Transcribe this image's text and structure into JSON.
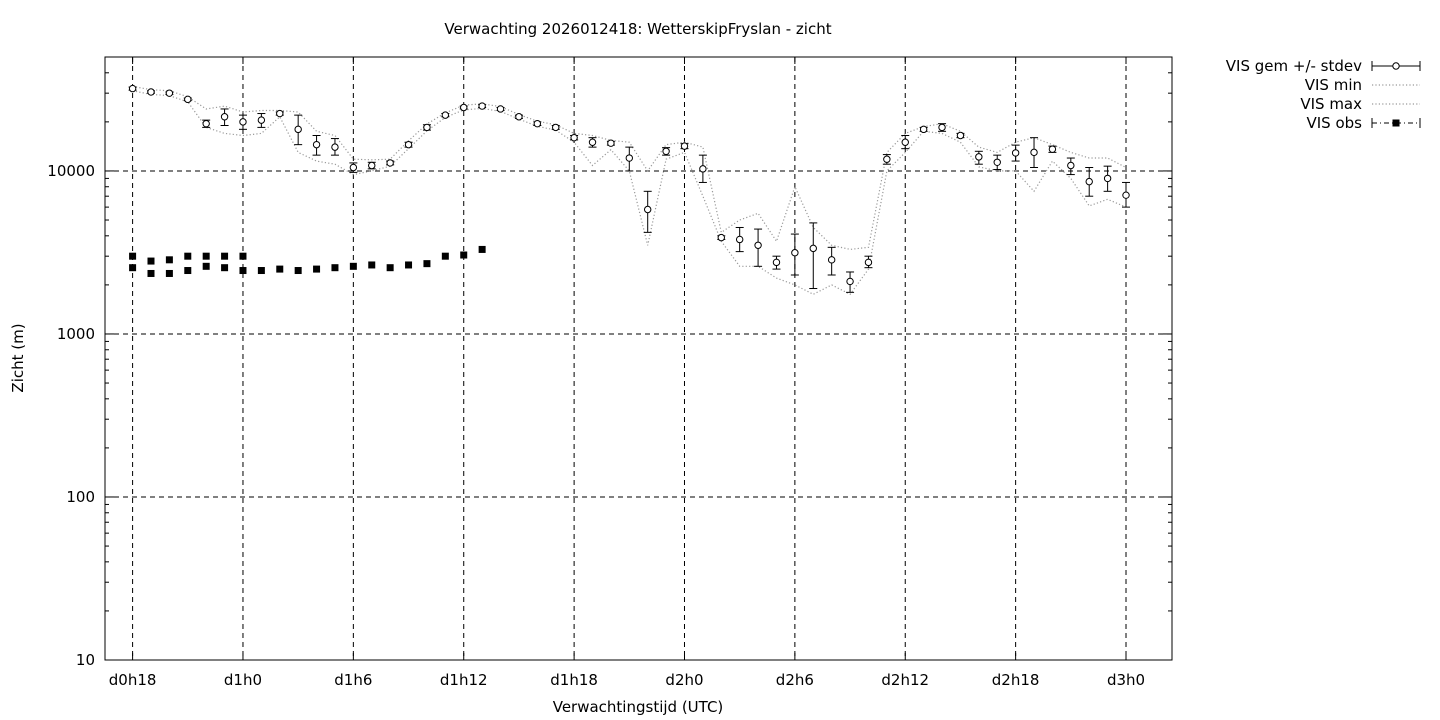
{
  "chart_data": {
    "type": "scatter",
    "title": "Verwachting 2026012418: WetterskipFryslan - zicht",
    "xlabel": "Verwachtingstijd (UTC)",
    "ylabel": "Zicht (m)",
    "x_unit": "hours since d0h18",
    "xlim": [
      -1.5,
      56.5
    ],
    "ylim": [
      10,
      50000
    ],
    "y_scale": "log",
    "grid": true,
    "legend_position": "outside top-right",
    "x_ticks": [
      {
        "x": 0,
        "label": "d0h18"
      },
      {
        "x": 6,
        "label": "d1h0"
      },
      {
        "x": 12,
        "label": "d1h6"
      },
      {
        "x": 18,
        "label": "d1h12"
      },
      {
        "x": 24,
        "label": "d1h18"
      },
      {
        "x": 30,
        "label": "d2h0"
      },
      {
        "x": 36,
        "label": "d2h6"
      },
      {
        "x": 42,
        "label": "d2h12"
      },
      {
        "x": 48,
        "label": "d2h18"
      },
      {
        "x": 54,
        "label": "d3h0"
      }
    ],
    "y_ticks": [
      {
        "y": 10,
        "label": "10"
      },
      {
        "y": 100,
        "label": "100"
      },
      {
        "y": 1000,
        "label": "1000"
      },
      {
        "y": 10000,
        "label": "10000"
      }
    ],
    "legend": [
      {
        "name": "VIS gem +/- stdev",
        "style": "errorbar-circle"
      },
      {
        "name": "VIS min",
        "style": "dotted"
      },
      {
        "name": "VIS max",
        "style": "dotted"
      },
      {
        "name": "VIS obs",
        "style": "square-dashdot"
      }
    ],
    "series": [
      {
        "name": "VIS gem +/- stdev",
        "x": [
          0,
          1,
          2,
          3,
          4,
          5,
          6,
          7,
          8,
          9,
          10,
          11,
          12,
          13,
          14,
          15,
          16,
          17,
          18,
          19,
          20,
          21,
          22,
          23,
          24,
          25,
          26,
          27,
          28,
          29,
          30,
          31,
          32,
          33,
          34,
          35,
          36,
          37,
          38,
          39,
          40,
          41,
          42,
          43,
          44,
          45,
          46,
          47,
          48,
          49,
          50,
          51,
          52,
          53,
          54
        ],
        "y": [
          32000,
          30500,
          30000,
          27500,
          19500,
          21500,
          20000,
          20500,
          22500,
          18000,
          14500,
          14000,
          10500,
          10800,
          11200,
          14500,
          18500,
          22000,
          24500,
          25000,
          24000,
          21500,
          19500,
          18500,
          16000,
          15000,
          14800,
          12000,
          5800,
          13200,
          14200,
          10300,
          3900,
          3800,
          3500,
          2750,
          3150,
          3350,
          2850,
          2100,
          2750,
          11800,
          15000,
          18000,
          18500,
          16500,
          12200,
          11300,
          12900,
          13000,
          13600,
          10800,
          8600,
          9000,
          7100
        ],
        "stdev_lo": [
          31300,
          30000,
          29500,
          27000,
          18500,
          19000,
          18000,
          18500,
          22000,
          14500,
          12500,
          12500,
          9800,
          10300,
          10900,
          14000,
          17800,
          21500,
          24000,
          24500,
          23500,
          21000,
          19000,
          18000,
          15500,
          14000,
          14400,
          10000,
          4200,
          12500,
          13700,
          8500,
          3800,
          3200,
          2600,
          2500,
          2300,
          1900,
          2300,
          1800,
          2550,
          11000,
          13700,
          17500,
          17500,
          16000,
          11000,
          10200,
          11500,
          10500,
          13000,
          9500,
          7000,
          7500,
          6000
        ],
        "stdev_hi": [
          32700,
          31000,
          30500,
          28000,
          20500,
          24000,
          22000,
          22500,
          23000,
          22000,
          16500,
          15800,
          11200,
          11300,
          11500,
          15000,
          19200,
          22500,
          25000,
          25500,
          24500,
          22000,
          20000,
          19000,
          16500,
          16000,
          15200,
          14000,
          7500,
          13900,
          14700,
          12500,
          4000,
          4500,
          4400,
          3000,
          4100,
          4800,
          3400,
          2400,
          3000,
          12600,
          16500,
          18500,
          19500,
          17000,
          13200,
          12500,
          14400,
          16000,
          14200,
          12000,
          10500,
          10700,
          8500
        ]
      },
      {
        "name": "VIS min",
        "x": [
          0,
          1,
          2,
          3,
          4,
          5,
          6,
          7,
          8,
          9,
          10,
          11,
          12,
          13,
          14,
          15,
          16,
          17,
          18,
          19,
          20,
          21,
          22,
          23,
          24,
          25,
          26,
          27,
          28,
          29,
          30,
          31,
          32,
          33,
          34,
          35,
          36,
          37,
          38,
          39,
          40,
          41,
          42,
          43,
          44,
          45,
          46,
          47,
          48,
          49,
          50,
          51,
          52,
          53,
          54
        ],
        "y": [
          31000,
          29500,
          29000,
          26500,
          18500,
          17000,
          16500,
          17000,
          21500,
          13000,
          11500,
          11000,
          9500,
          10000,
          10700,
          13700,
          17600,
          21300,
          23700,
          24200,
          23200,
          20800,
          18800,
          17800,
          15000,
          10800,
          13500,
          10000,
          3500,
          11800,
          13000,
          7000,
          3700,
          2600,
          2600,
          2200,
          2000,
          1750,
          2000,
          1750,
          2500,
          10000,
          13000,
          17500,
          17000,
          15000,
          10600,
          10000,
          10000,
          7500,
          11500,
          9000,
          6100,
          6700,
          6000
        ]
      },
      {
        "name": "VIS max",
        "x": [
          0,
          1,
          2,
          3,
          4,
          5,
          6,
          7,
          8,
          9,
          10,
          11,
          12,
          13,
          14,
          15,
          16,
          17,
          18,
          19,
          20,
          21,
          22,
          23,
          24,
          25,
          26,
          27,
          28,
          29,
          30,
          31,
          32,
          33,
          34,
          35,
          36,
          37,
          38,
          39,
          40,
          41,
          42,
          43,
          44,
          45,
          46,
          47,
          48,
          49,
          50,
          51,
          52,
          53,
          54
        ],
        "y": [
          33000,
          31500,
          31000,
          28500,
          24000,
          25000,
          23000,
          23500,
          23500,
          23000,
          17500,
          16500,
          11800,
          11700,
          11800,
          15300,
          19400,
          22700,
          25300,
          25800,
          24800,
          22200,
          20200,
          19200,
          17000,
          16500,
          15400,
          15000,
          10000,
          14500,
          15000,
          14000,
          4200,
          5000,
          5500,
          3700,
          8000,
          4500,
          3500,
          3300,
          3400,
          13000,
          17000,
          18700,
          19500,
          17500,
          14000,
          13000,
          15000,
          16000,
          14500,
          13000,
          12000,
          12000,
          10500
        ]
      },
      {
        "name": "VIS obs",
        "x": [
          0,
          0,
          1,
          1,
          2,
          2,
          3,
          3,
          4,
          4,
          5,
          5,
          6,
          6,
          7,
          8,
          9,
          10,
          11,
          12,
          13,
          14,
          15,
          16,
          17,
          18,
          19
        ],
        "y": [
          3000,
          2550,
          2800,
          2350,
          2850,
          2350,
          3000,
          2450,
          3000,
          2600,
          3000,
          2550,
          3000,
          2450,
          2450,
          2500,
          2450,
          2500,
          2550,
          2600,
          2650,
          2550,
          2650,
          2700,
          3000,
          3050,
          3300
        ]
      }
    ]
  }
}
